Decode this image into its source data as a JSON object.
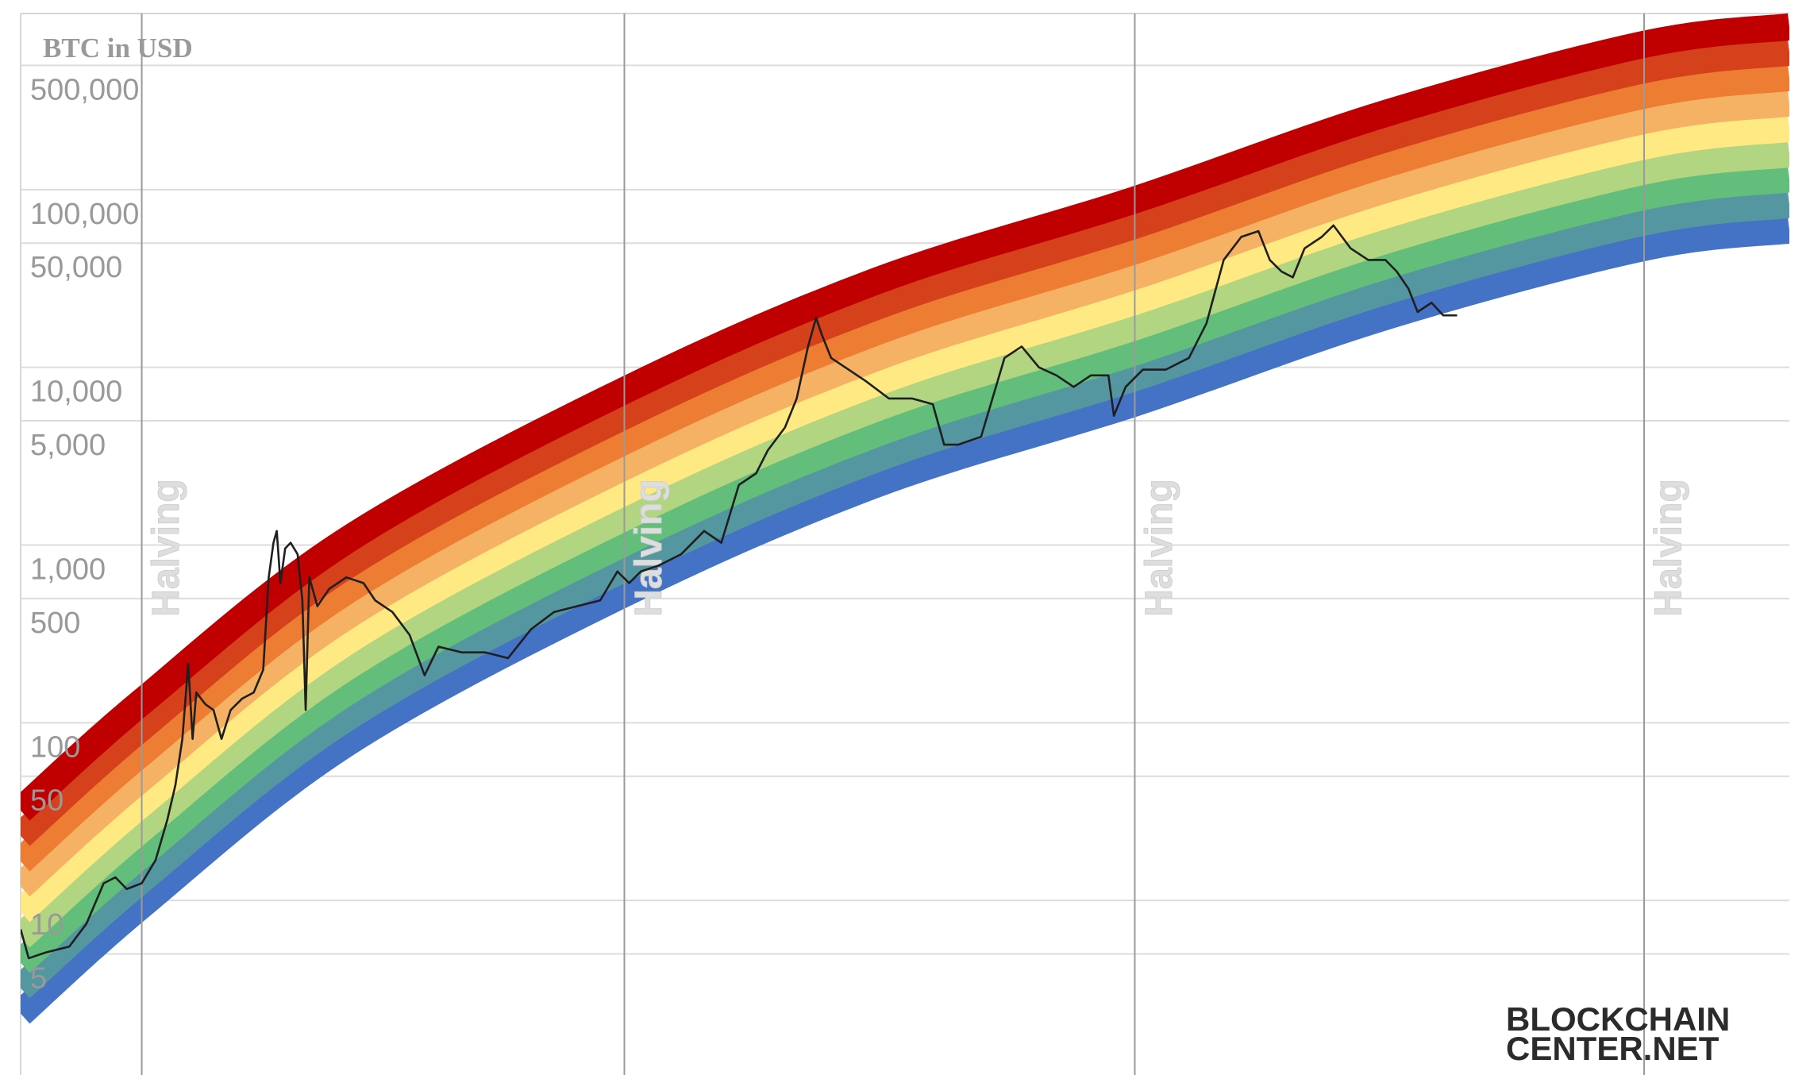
{
  "chart_data": {
    "type": "line",
    "y_label": "BTC in USD",
    "log_y": true,
    "grid": true,
    "xlim": [
      0,
      4834
    ],
    "ylim": [
      1,
      1000000
    ],
    "yticks": [
      5,
      10,
      50,
      100,
      500,
      {
        "value": 1000,
        "label": "1,000"
      },
      {
        "value": 5000,
        "label": "5,000"
      },
      {
        "value": 10000,
        "label": "10,000"
      },
      {
        "value": 50000,
        "label": "50,000"
      },
      {
        "value": 100000,
        "label": "100,000"
      },
      {
        "value": 500000,
        "label": "500,000"
      }
    ],
    "halvings": [
      {
        "x": 331,
        "label": "Halving"
      },
      {
        "x": 1650,
        "label": "Halving"
      },
      {
        "x": 3045,
        "label": "Halving"
      },
      {
        "x": 4437,
        "label": "Halving"
      }
    ],
    "band_x": [
      0,
      331,
      890,
      1650,
      2341,
      3045,
      3730,
      4437,
      4834
    ],
    "bands": [
      {
        "color": "#4472c4",
        "values": [
          2.31,
          9.42,
          76.4,
          533,
          2210,
          6300,
          19300,
          47300,
          59300
        ]
      },
      {
        "color": "#5497a0",
        "values": [
          3.21,
          13.1,
          106,
          740,
          3070,
          8750,
          26800,
          65700,
          82400
        ]
      },
      {
        "color": "#63be7b",
        "values": [
          4.46,
          18.2,
          148,
          1030,
          4260,
          12200,
          37300,
          91400,
          115000
        ]
      },
      {
        "color": "#b1d580",
        "values": [
          6.2,
          25.3,
          205,
          1430,
          5930,
          16900,
          51800,
          127000,
          159000
        ]
      },
      {
        "color": "#fee983",
        "values": [
          8.61,
          35.1,
          285,
          1990,
          8240,
          23500,
          72000,
          176000,
          221000
        ]
      },
      {
        "color": "#f5b264",
        "values": [
          12.0,
          48.8,
          396,
          2760,
          11400,
          32600,
          100000,
          245000,
          307000
        ]
      },
      {
        "color": "#ec7d32",
        "values": [
          16.6,
          67.8,
          550,
          3840,
          15900,
          45300,
          139000,
          340000,
          427000
        ]
      },
      {
        "color": "#d4411b",
        "values": [
          23.1,
          94.2,
          764,
          5330,
          22100,
          63000,
          193000,
          473000,
          593000
        ]
      },
      {
        "color": "#c00000",
        "values": [
          32.1,
          131,
          1060,
          7400,
          30700,
          87500,
          268000,
          657000,
          824000
        ]
      }
    ],
    "series": [
      {
        "color": "#1f1f1f",
        "x": [
          0,
          22,
          69,
          133,
          180,
          227,
          259,
          290,
          331,
          369,
          401,
          423,
          442,
          458,
          470,
          480,
          505,
          527,
          549,
          574,
          606,
          637,
          663,
          678,
          691,
          700,
          710,
          723,
          738,
          757,
          770,
          779,
          789,
          811,
          843,
          890,
          937,
          969,
          1016,
          1063,
          1104,
          1142,
          1205,
          1269,
          1332,
          1395,
          1458,
          1521,
          1584,
          1631,
          1663,
          1695,
          1742,
          1805,
          1868,
          1915,
          1963,
          2010,
          2042,
          2089,
          2121,
          2152,
          2174,
          2190,
          2215,
          2263,
          2310,
          2373,
          2436,
          2493,
          2524,
          2562,
          2625,
          2689,
          2736,
          2783,
          2831,
          2878,
          2925,
          2973,
          2988,
          3020,
          3067,
          3130,
          3193,
          3241,
          3288,
          3336,
          3383,
          3414,
          3446,
          3477,
          3509,
          3556,
          3588,
          3635,
          3683,
          3730,
          3761,
          3793,
          3818,
          3856,
          3888,
          3926
        ],
        "values": [
          6.88,
          4.73,
          5.1,
          5.5,
          7.41,
          12.5,
          13.5,
          11.6,
          12.5,
          16.9,
          28.5,
          44.6,
          81.1,
          214,
          81.1,
          148,
          127,
          118,
          81.1,
          118,
          137,
          148,
          199,
          658,
          1030,
          1200,
          611,
          957,
          1030,
          887,
          488,
          118,
          658,
          453,
          566,
          658,
          611,
          488,
          420,
          312,
          185,
          268,
          249,
          249,
          231,
          336,
          420,
          453,
          488,
          710,
          611,
          710,
          764,
          887,
          1200,
          1030,
          2180,
          2530,
          3410,
          4590,
          6680,
          13100,
          19000,
          15200,
          11300,
          9710,
          8360,
          6680,
          6680,
          6200,
          3670,
          3670,
          4070,
          11300,
          13100,
          10000,
          9010,
          7760,
          9010,
          9010,
          5340,
          7760,
          9710,
          9710,
          11300,
          17700,
          40200,
          54200,
          58400,
          40200,
          34600,
          32100,
          46700,
          54200,
          62900,
          46700,
          40200,
          40200,
          34600,
          27700,
          20500,
          23100,
          19600,
          19600
        ]
      }
    ],
    "watermark": [
      "BLOCKCHAIN",
      "CENTER.NET"
    ]
  }
}
